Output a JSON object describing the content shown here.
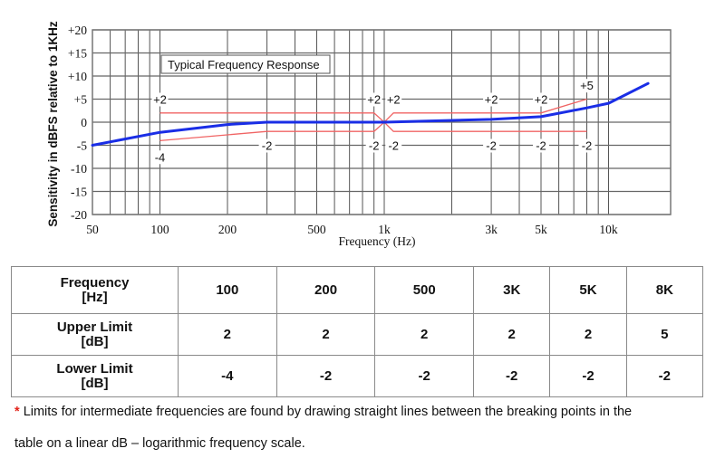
{
  "chart_data": {
    "type": "line",
    "title": "Typical Frequency Response",
    "xlabel": "Frequency (Hz)",
    "ylabel": "Sensitivity in dBFS relative to 1KHz",
    "xscale": "log",
    "xlim": [
      50,
      20000
    ],
    "ylim": [
      -20,
      20
    ],
    "grid": true,
    "x_tick_labels": [
      "50",
      "100",
      "200",
      "500",
      "1k",
      "3k",
      "5k",
      "10k"
    ],
    "x_tick_values": [
      50,
      100,
      200,
      500,
      1000,
      3000,
      5000,
      10000
    ],
    "y_tick_labels": [
      "+20",
      "+15",
      "+10",
      "+5",
      "0",
      "-5",
      "-10",
      "-15",
      "-20"
    ],
    "y_tick_values": [
      20,
      15,
      10,
      5,
      0,
      -5,
      -10,
      -15,
      -20
    ],
    "series": [
      {
        "name": "Typical Frequency Response",
        "color": "#1a2ee6",
        "x": [
          50,
          100,
          200,
          300,
          1000,
          3000,
          5000,
          8000,
          10000,
          15000
        ],
        "y": [
          -5,
          -2.2,
          -0.5,
          0,
          0,
          0.6,
          1.2,
          3.1,
          4.1,
          8.4
        ]
      },
      {
        "name": "Upper Limit",
        "color": "#f06464",
        "x": [
          100,
          900,
          1000,
          1100,
          5000,
          8000
        ],
        "y": [
          2,
          2,
          0,
          2,
          2,
          5
        ]
      },
      {
        "name": "Lower Limit",
        "color": "#f06464",
        "x": [
          100,
          300,
          900,
          1000,
          1100,
          8000
        ],
        "y": [
          -4,
          -2,
          -2,
          0,
          -2,
          -2
        ]
      }
    ],
    "annotations": [
      {
        "text": "+2",
        "x": 100,
        "y": 5
      },
      {
        "text": "-4",
        "x": 100,
        "y": -7.5
      },
      {
        "text": "-2",
        "x": 300,
        "y": -5
      },
      {
        "text": "+2",
        "x": 900,
        "y": 5
      },
      {
        "text": "-2",
        "x": 900,
        "y": -5
      },
      {
        "text": "+2",
        "x": 1100,
        "y": 5
      },
      {
        "text": "-2",
        "x": 1100,
        "y": -5
      },
      {
        "text": "+2",
        "x": 3000,
        "y": 5
      },
      {
        "text": "-2",
        "x": 3000,
        "y": -5
      },
      {
        "text": "+2",
        "x": 5000,
        "y": 5
      },
      {
        "text": "-2",
        "x": 5000,
        "y": -5
      },
      {
        "text": "+5",
        "x": 8000,
        "y": 8
      },
      {
        "text": "-2",
        "x": 8000,
        "y": -5
      }
    ]
  },
  "table": {
    "rows": [
      {
        "label_line1": "Frequency",
        "label_line2": "[Hz]",
        "values": [
          "100",
          "200",
          "500",
          "3K",
          "5K",
          "8K"
        ]
      },
      {
        "label_line1": "Upper Limit",
        "label_line2": "[dB]",
        "values": [
          "2",
          "2",
          "2",
          "2",
          "2",
          "5"
        ]
      },
      {
        "label_line1": "Lower Limit",
        "label_line2": "[dB]",
        "values": [
          "-4",
          "-2",
          "-2",
          "-2",
          "-2",
          "-2"
        ]
      }
    ]
  },
  "footnote": {
    "marker": "*",
    "line1": "Limits for intermediate frequencies are found by drawing straight lines between the breaking points in the",
    "line2": "table on a linear dB – logarithmic frequency scale."
  }
}
